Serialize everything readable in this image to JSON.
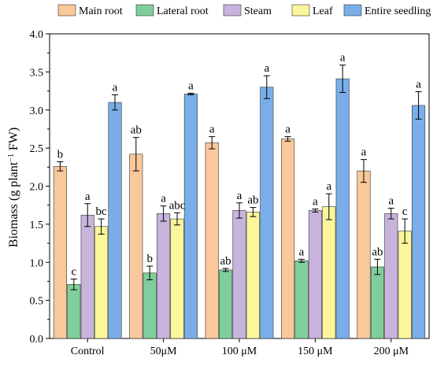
{
  "chart_data": {
    "type": "bar",
    "ylabel": "Biomass (g plant⁻¹ FW)",
    "ylabel_parts": {
      "prefix": "Biomass (g plant",
      "sup": "−1",
      "suffix": " FW)"
    },
    "xlabel": "",
    "ylim": [
      0,
      4.0
    ],
    "yticks": [
      "0.0",
      "0.5",
      "1.0",
      "1.5",
      "2.0",
      "2.5",
      "3.0",
      "3.5",
      "4.0"
    ],
    "categories": [
      "Control",
      "50μM",
      "100 μM",
      "150 μM",
      "200 μM"
    ],
    "legend_position": "top",
    "series": [
      {
        "name": "Main root",
        "color": "#f9c89b",
        "values": [
          2.26,
          2.42,
          2.57,
          2.62,
          2.2
        ],
        "errors": [
          0.06,
          0.22,
          0.08,
          0.03,
          0.15
        ],
        "labels": [
          "b",
          "ab",
          "a",
          "a",
          "a"
        ]
      },
      {
        "name": "Lateral root",
        "color": "#7fce9b",
        "values": [
          0.71,
          0.86,
          0.9,
          1.02,
          0.94
        ],
        "errors": [
          0.07,
          0.09,
          0.02,
          0.02,
          0.1
        ],
        "labels": [
          "c",
          "b",
          "ab",
          "a",
          "ab"
        ]
      },
      {
        "name": "Steam",
        "color": "#c7b3dc",
        "values": [
          1.62,
          1.64,
          1.68,
          1.68,
          1.64
        ],
        "errors": [
          0.15,
          0.1,
          0.1,
          0.02,
          0.07
        ],
        "labels": [
          "a",
          "a",
          "a",
          "a",
          "a"
        ]
      },
      {
        "name": "Leaf",
        "color": "#fbf69c",
        "values": [
          1.47,
          1.57,
          1.66,
          1.73,
          1.41
        ],
        "errors": [
          0.1,
          0.08,
          0.06,
          0.17,
          0.16
        ],
        "labels": [
          "bc",
          "abc",
          "ab",
          "a",
          "c"
        ]
      },
      {
        "name": "Entire seedling",
        "color": "#79aee8",
        "values": [
          3.1,
          3.21,
          3.3,
          3.41,
          3.06
        ],
        "errors": [
          0.1,
          0.01,
          0.15,
          0.18,
          0.18
        ],
        "labels": [
          "a",
          "a",
          "a",
          "a",
          "a"
        ]
      }
    ]
  }
}
